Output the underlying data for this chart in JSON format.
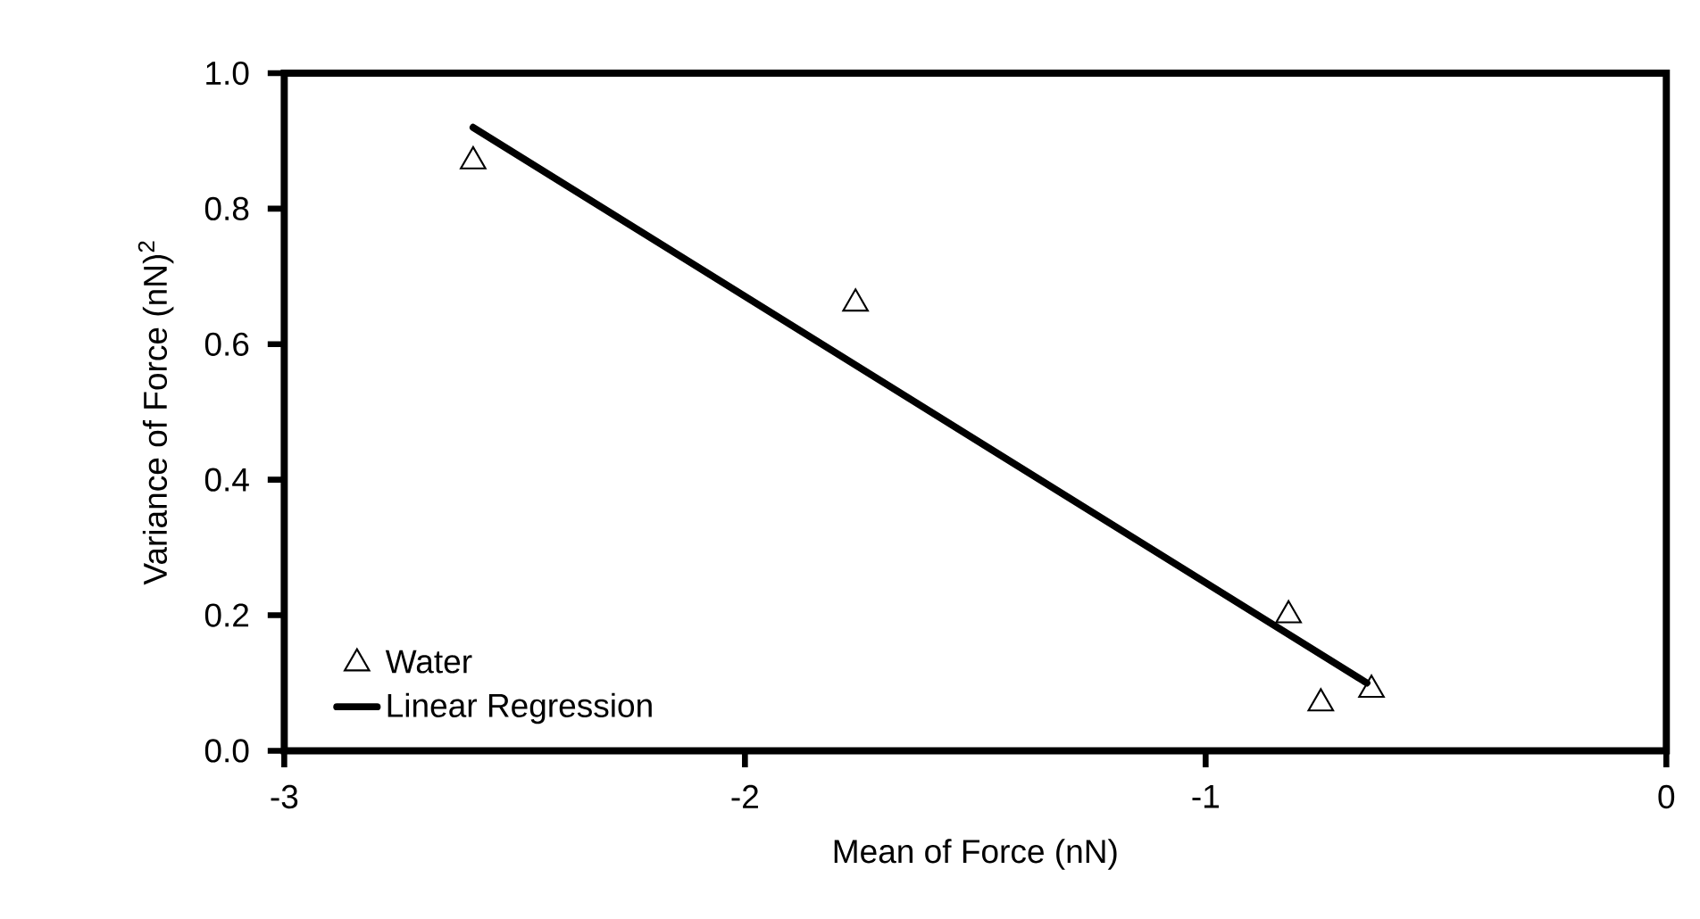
{
  "chart_data": {
    "type": "scatter",
    "xlabel": "Mean of Force (nN)",
    "ylabel": "Variance of Force (nN)$^{2}$",
    "xlim": [
      -3,
      0
    ],
    "ylim": [
      0,
      1
    ],
    "xticks": [
      {
        "value": -3,
        "label": "-3"
      },
      {
        "value": -2,
        "label": "-2"
      },
      {
        "value": -1,
        "label": "-1"
      },
      {
        "value": 0,
        "label": "0"
      }
    ],
    "yticks": [
      {
        "value": 0,
        "label": "0.0"
      },
      {
        "value": 0.2,
        "label": "0.2"
      },
      {
        "value": 0.4,
        "label": "0.4"
      },
      {
        "value": 0.6,
        "label": "0.6"
      },
      {
        "value": 0.8,
        "label": "0.8"
      },
      {
        "value": 1,
        "label": "1.0"
      }
    ],
    "grid": false,
    "legend": "bottom left",
    "series": [
      {
        "name": "Water",
        "marker": "triangle",
        "color": "#000000",
        "x": [
          -2.59,
          -1.76,
          -0.82,
          -0.75,
          -0.64
        ],
        "values": [
          0.87,
          0.66,
          0.2,
          0.07,
          0.09
        ]
      },
      {
        "name": "Linear Regression",
        "type": "line",
        "marker": "none",
        "line_style": "solid",
        "color": "#000000",
        "x": [
          -2.59,
          -0.65
        ],
        "values": [
          0.92,
          0.1
        ]
      }
    ]
  }
}
